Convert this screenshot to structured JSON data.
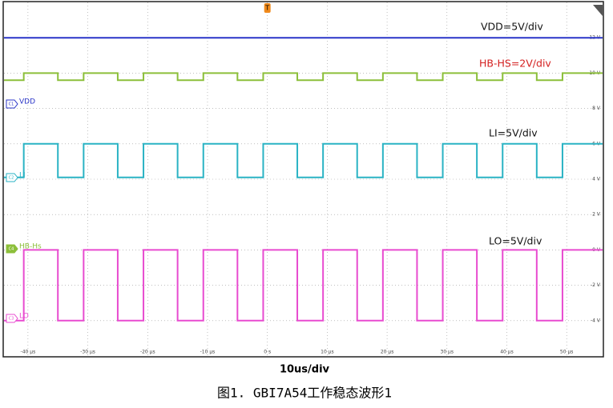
{
  "chart_data": {
    "type": "line",
    "trigger": "T",
    "xlim": [
      -44,
      56
    ],
    "ylim": [
      -6,
      14
    ],
    "xticks": [
      {
        "value": -40,
        "label": "-40 µs"
      },
      {
        "value": -30,
        "label": "-30 µs"
      },
      {
        "value": -20,
        "label": "-20 µs"
      },
      {
        "value": -10,
        "label": "-10 µs"
      },
      {
        "value": 0,
        "label": "0 s"
      },
      {
        "value": 10,
        "label": "10 µs"
      },
      {
        "value": 20,
        "label": "20 µs"
      },
      {
        "value": 30,
        "label": "30 µs"
      },
      {
        "value": 40,
        "label": "40 µs"
      },
      {
        "value": 50,
        "label": "50 µs"
      }
    ],
    "yticks": [
      {
        "value": 12,
        "label": "12 V"
      },
      {
        "value": 10,
        "label": "10 V"
      },
      {
        "value": 8,
        "label": "8 V"
      },
      {
        "value": 6,
        "label": "6 V"
      },
      {
        "value": 4,
        "label": "4 V"
      },
      {
        "value": 2,
        "label": "2 V"
      },
      {
        "value": 0,
        "label": "0 V"
      },
      {
        "value": -2,
        "label": "-2 V"
      },
      {
        "value": -4,
        "label": "-4 V"
      }
    ],
    "grid": true,
    "x_label": "10us/div",
    "series": [
      {
        "name": "VDD",
        "badge": "C1",
        "color": "#2a35c8",
        "x": [
          -44,
          56
        ],
        "values": [
          12,
          12
        ]
      },
      {
        "name": "HB-Hs",
        "badge": "C4",
        "color": "#8cbf3a",
        "x": [
          -44,
          -40.7,
          -40.7,
          -35,
          -35,
          -30.7,
          -30.7,
          -25,
          -25,
          -20.7,
          -20.7,
          -15,
          -15,
          -10.7,
          -10.7,
          -5,
          -5,
          -0.7,
          -0.7,
          5,
          5,
          9.3,
          9.3,
          15,
          15,
          19.3,
          19.3,
          25,
          25,
          29.3,
          29.3,
          35,
          35,
          39.3,
          39.3,
          45,
          45,
          49.3,
          49.3,
          56
        ],
        "values": [
          9.6,
          9.6,
          10,
          10,
          9.6,
          9.6,
          10,
          10,
          9.6,
          9.6,
          10,
          10,
          9.6,
          9.6,
          10,
          10,
          9.6,
          9.6,
          10,
          10,
          9.6,
          9.6,
          10,
          10,
          9.6,
          9.6,
          10,
          10,
          9.6,
          9.6,
          10,
          10,
          9.6,
          9.6,
          10,
          10,
          9.6,
          9.6,
          10,
          10
        ]
      },
      {
        "name": "LI",
        "badge": "C2",
        "color": "#2ab3c4",
        "x": [
          -44,
          -40.7,
          -40.7,
          -35,
          -35,
          -30.7,
          -30.7,
          -25,
          -25,
          -20.7,
          -20.7,
          -15,
          -15,
          -10.7,
          -10.7,
          -5,
          -5,
          -0.7,
          -0.7,
          5,
          5,
          9.3,
          9.3,
          15,
          15,
          19.3,
          19.3,
          25,
          25,
          29.3,
          29.3,
          35,
          35,
          39.3,
          39.3,
          45,
          45,
          49.3,
          49.3,
          56
        ],
        "values": [
          4.1,
          4.1,
          6,
          6,
          4.1,
          4.1,
          6,
          6,
          4.1,
          4.1,
          6,
          6,
          4.1,
          4.1,
          6,
          6,
          4.1,
          4.1,
          6,
          6,
          4.1,
          4.1,
          6,
          6,
          4.1,
          4.1,
          6,
          6,
          4.1,
          4.1,
          6,
          6,
          4.1,
          4.1,
          6,
          6,
          4.1,
          4.1,
          6,
          6
        ]
      },
      {
        "name": "LO",
        "badge": "C3",
        "color": "#e84bd0",
        "x": [
          -44,
          -40.7,
          -40.7,
          -35,
          -35,
          -30.7,
          -30.7,
          -25,
          -25,
          -20.7,
          -20.7,
          -15,
          -15,
          -10.7,
          -10.7,
          -5,
          -5,
          -0.7,
          -0.7,
          5,
          5,
          9.3,
          9.3,
          15,
          15,
          19.3,
          19.3,
          25,
          25,
          29.3,
          29.3,
          35,
          35,
          39.3,
          39.3,
          45,
          45,
          49.3,
          49.3,
          56
        ],
        "values": [
          -4,
          -4,
          0,
          0,
          -4,
          -4,
          0,
          0,
          -4,
          -4,
          0,
          0,
          -4,
          -4,
          0,
          0,
          -4,
          -4,
          0,
          0,
          -4,
          -4,
          0,
          0,
          -4,
          -4,
          0,
          0,
          -4,
          -4,
          0,
          0,
          -4,
          -4,
          0,
          0,
          -4,
          -4,
          0,
          0
        ]
      }
    ],
    "annotations": [
      {
        "text": "VDD=5V/div",
        "color": "#111111"
      },
      {
        "text": "HB-HS=2V/div",
        "color": "#d42020"
      },
      {
        "text": "LI=5V/div",
        "color": "#111111"
      },
      {
        "text": "LO=5V/div",
        "color": "#111111"
      }
    ]
  },
  "caption": "图1. GBI7A54工作稳态波形1"
}
